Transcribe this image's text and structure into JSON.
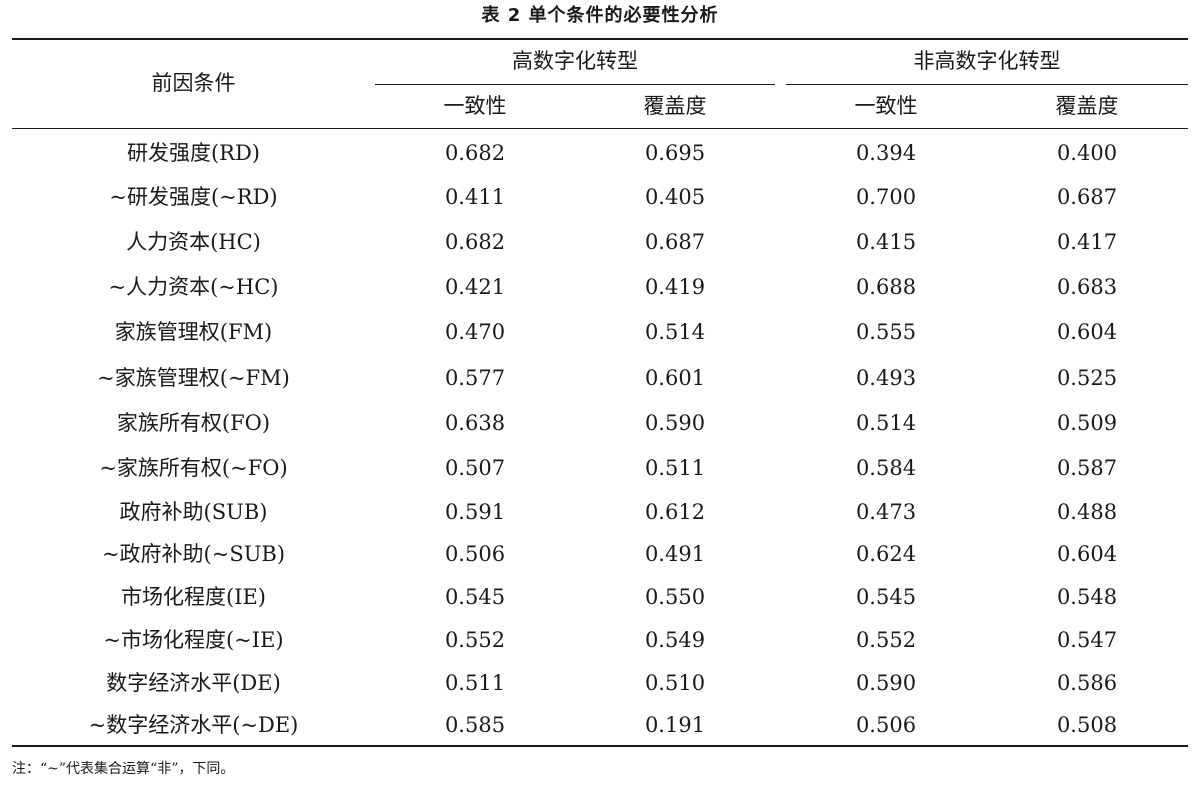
{
  "caption": "表 2   单个条件的必要性分析",
  "header": {
    "stub": "前因条件",
    "groups": [
      {
        "label": "高数字化转型",
        "sub": [
          "一致性",
          "覆盖度"
        ]
      },
      {
        "label": "非高数字化转型",
        "sub": [
          "一致性",
          "覆盖度"
        ]
      }
    ]
  },
  "rows": [
    {
      "label": "研发强度(RD)",
      "values": [
        "0.682",
        "0.695",
        "0.394",
        "0.400"
      ]
    },
    {
      "label": "~研发强度(~RD)",
      "values": [
        "0.411",
        "0.405",
        "0.700",
        "0.687"
      ]
    },
    {
      "label": "人力资本(HC)",
      "values": [
        "0.682",
        "0.687",
        "0.415",
        "0.417"
      ]
    },
    {
      "label": "~人力资本(~HC)",
      "values": [
        "0.421",
        "0.419",
        "0.688",
        "0.683"
      ]
    },
    {
      "label": "家族管理权(FM)",
      "values": [
        "0.470",
        "0.514",
        "0.555",
        "0.604"
      ]
    },
    {
      "label": "~家族管理权(~FM)",
      "values": [
        "0.577",
        "0.601",
        "0.493",
        "0.525"
      ]
    },
    {
      "label": "家族所有权(FO)",
      "values": [
        "0.638",
        "0.590",
        "0.514",
        "0.509"
      ]
    },
    {
      "label": "~家族所有权(~FO)",
      "values": [
        "0.507",
        "0.511",
        "0.584",
        "0.587"
      ]
    },
    {
      "label": "政府补助(SUB)",
      "values": [
        "0.591",
        "0.612",
        "0.473",
        "0.488"
      ]
    },
    {
      "label": "~政府补助(~SUB)",
      "values": [
        "0.506",
        "0.491",
        "0.624",
        "0.604"
      ]
    },
    {
      "label": "市场化程度(IE)",
      "values": [
        "0.545",
        "0.550",
        "0.545",
        "0.548"
      ]
    },
    {
      "label": "~市场化程度(~IE)",
      "values": [
        "0.552",
        "0.549",
        "0.552",
        "0.547"
      ]
    },
    {
      "label": "数字经济水平(DE)",
      "values": [
        "0.511",
        "0.510",
        "0.590",
        "0.586"
      ]
    },
    {
      "label": "~数字经济水平(~DE)",
      "values": [
        "0.585",
        "0.191",
        "0.506",
        "0.508"
      ]
    }
  ],
  "note": "注：“~”代表集合运算“非”，下同。"
}
